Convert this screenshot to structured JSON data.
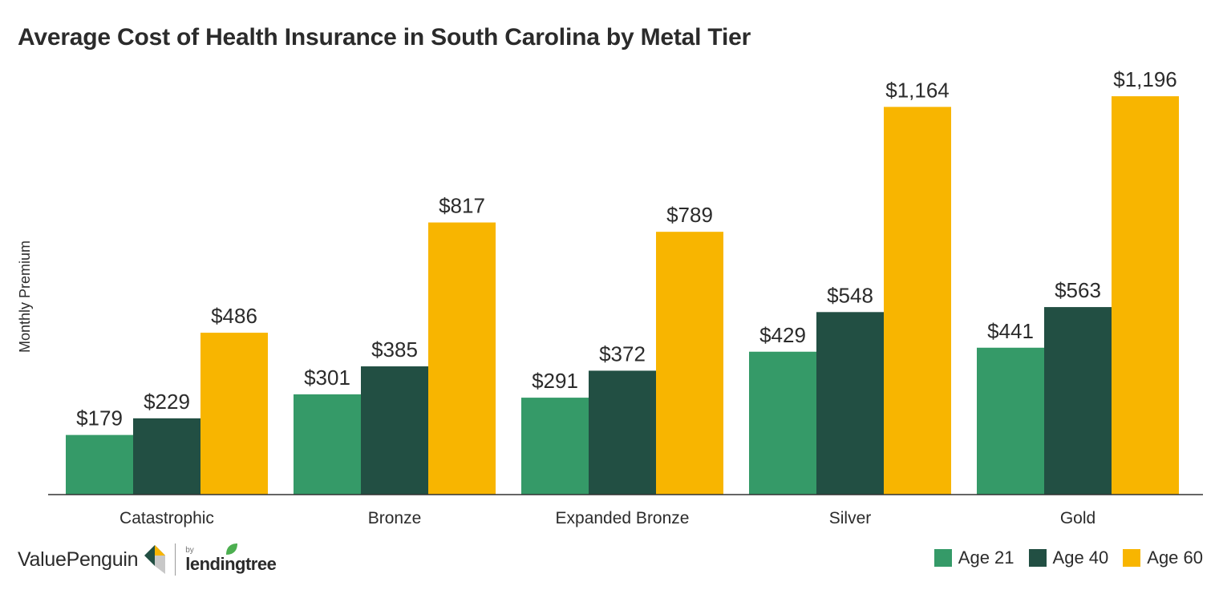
{
  "title": "Average Cost of Health Insurance in South Carolina by Metal Tier",
  "brand": {
    "name": "ValuePenguin",
    "by": "by",
    "partner": "lendingtree"
  },
  "colors": {
    "age21": "#359a68",
    "age40": "#224f43",
    "age60": "#f8b500"
  },
  "chart_data": {
    "type": "bar",
    "title": "Average Cost of Health Insurance in South Carolina by Metal Tier",
    "xlabel": "",
    "ylabel": "Monthly Premium",
    "ylim": [
      0,
      1300
    ],
    "grid": false,
    "legend_position": "bottom-right",
    "categories": [
      "Catastrophic",
      "Bronze",
      "Expanded Bronze",
      "Silver",
      "Gold"
    ],
    "series": [
      {
        "name": "Age 21",
        "color": "#359a68",
        "values": [
          179,
          301,
          291,
          429,
          441
        ],
        "labels": [
          "$179",
          "$301",
          "$291",
          "$429",
          "$441"
        ]
      },
      {
        "name": "Age 40",
        "color": "#224f43",
        "values": [
          229,
          385,
          372,
          548,
          563
        ],
        "labels": [
          "$229",
          "$385",
          "$372",
          "$548",
          "$563"
        ]
      },
      {
        "name": "Age 60",
        "color": "#f8b500",
        "values": [
          486,
          817,
          789,
          1164,
          1196
        ],
        "labels": [
          "$486",
          "$817",
          "$789",
          "$1,164",
          "$1,196"
        ]
      }
    ]
  }
}
